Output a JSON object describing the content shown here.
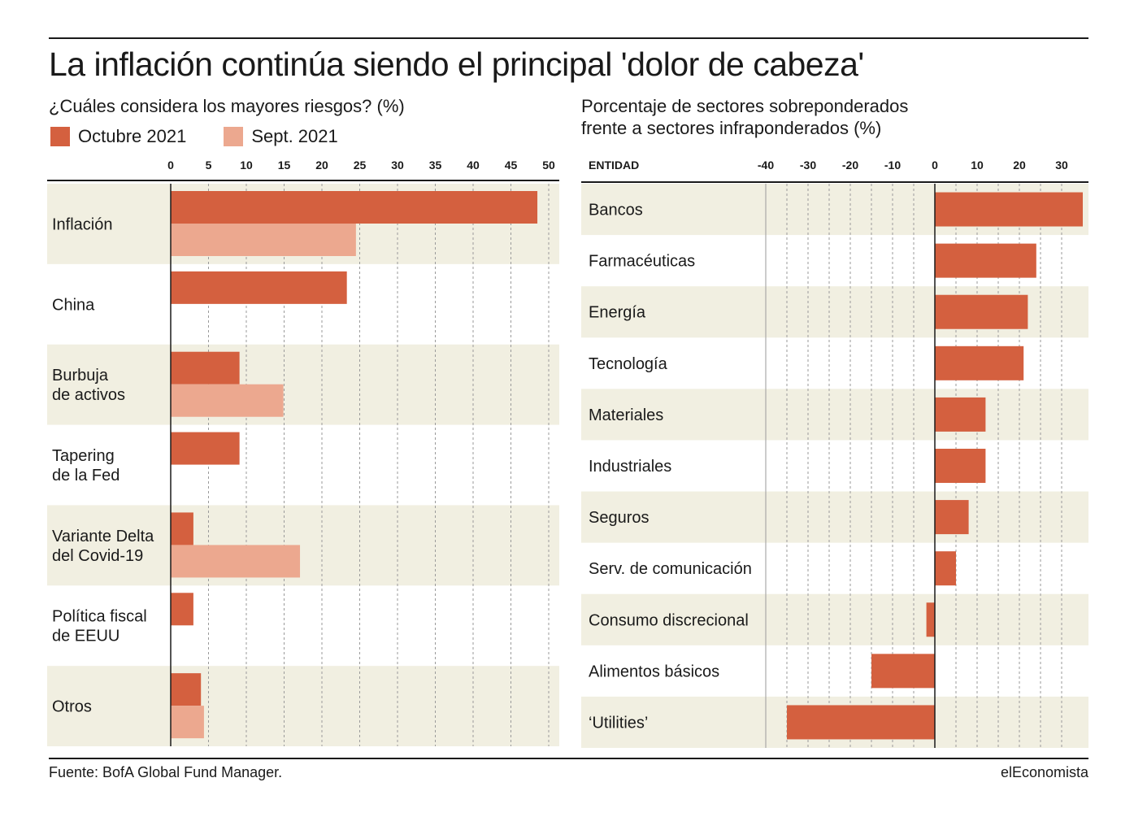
{
  "title": "La inflación continúa siendo el principal 'dolor de cabeza'",
  "left_subtitle": "¿Cuáles considera los mayores riesgos? (%)",
  "right_subtitle": [
    "Porcentaje de sectores sobreponderados",
    "frente a sectores infraponderados (%)"
  ],
  "source": "Fuente: BofA Global Fund Manager.",
  "brand": "elEconomista",
  "colors": {
    "primary": "#d4603f",
    "secondary": "#eca88f",
    "band": "#f1efe1",
    "text": "#1a1a1a",
    "grid": "#9a9a9a"
  },
  "chart_data": [
    {
      "type": "bar",
      "orientation": "horizontal",
      "title": "¿Cuáles considera los mayores riesgos? (%)",
      "categories": [
        [
          "Inflación"
        ],
        [
          "China"
        ],
        [
          "Burbuja",
          "de activos"
        ],
        [
          "Tapering",
          "de la Fed"
        ],
        [
          "Variante Delta",
          "del Covid-19"
        ],
        [
          "Política fiscal",
          "de EEUU"
        ],
        [
          "Otros"
        ]
      ],
      "series": [
        {
          "name": "Octubre 2021",
          "color": "#d4603f",
          "values": [
            48.5,
            23.3,
            9.1,
            9.1,
            3.0,
            3.0,
            4.0
          ]
        },
        {
          "name": "Sept. 2021",
          "color": "#eca88f",
          "values": [
            24.5,
            null,
            14.9,
            null,
            17.1,
            null,
            4.4
          ]
        }
      ],
      "xlim": [
        0,
        50
      ],
      "ticks": [
        0,
        5,
        10,
        15,
        20,
        25,
        30,
        35,
        40,
        45,
        50
      ],
      "grid": true,
      "legend": "top-left",
      "alternating_bands": true
    },
    {
      "type": "bar",
      "orientation": "horizontal",
      "title": "Porcentaje de sectores sobreponderados frente a sectores infraponderados (%)",
      "category_header": "ENTIDAD",
      "categories": [
        "Bancos",
        "Farmacéuticas",
        "Energía",
        "Tecnología",
        "Materiales",
        "Industriales",
        "Seguros",
        "Serv. de comunicación",
        "Consumo discrecional",
        "Alimentos básicos",
        "‘Utilities’"
      ],
      "series": [
        {
          "color": "#d4603f",
          "values": [
            35,
            24,
            22,
            21,
            12,
            12,
            8,
            5,
            -2,
            -15,
            -35
          ]
        }
      ],
      "xlim": [
        -40,
        35
      ],
      "ticks": [
        -40,
        -30,
        -20,
        -10,
        0,
        10,
        20,
        30
      ],
      "grid": true,
      "alternating_bands": true
    }
  ]
}
